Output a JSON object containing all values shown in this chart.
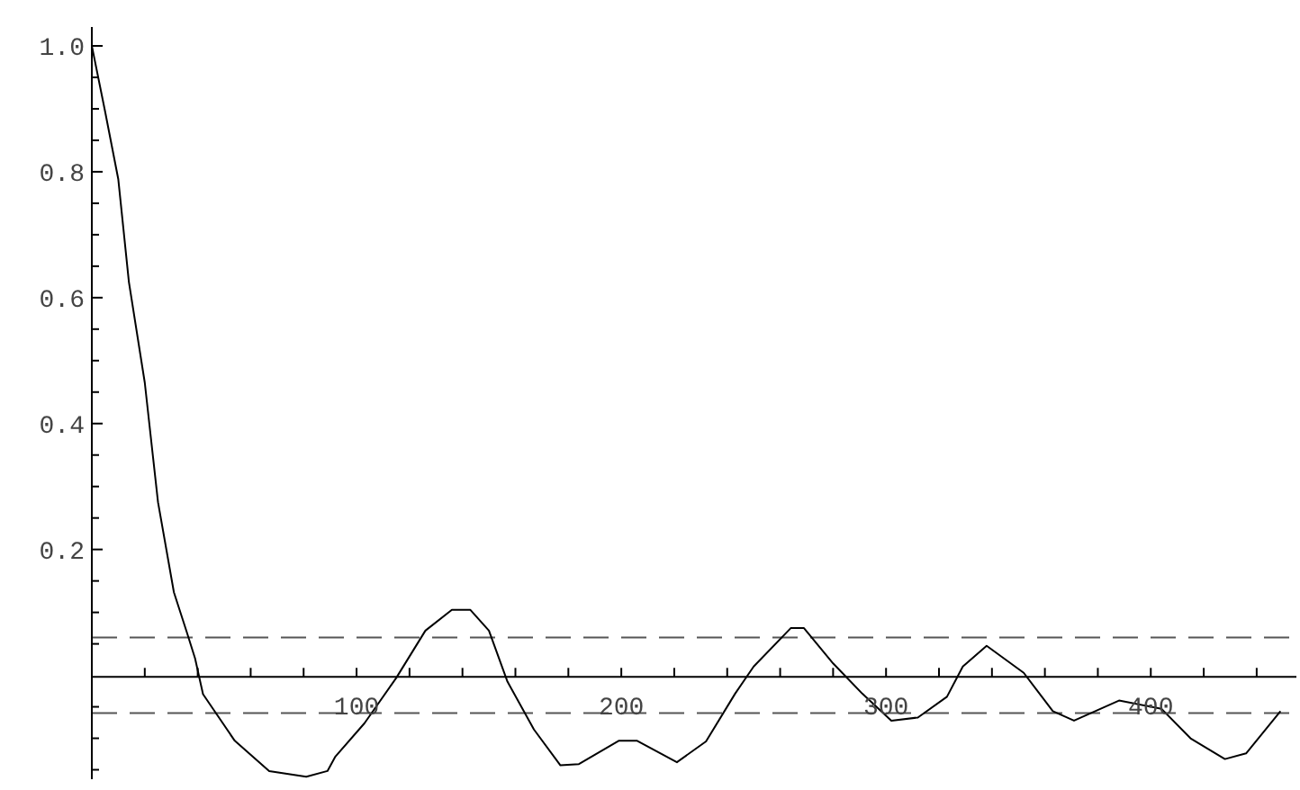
{
  "chart_data": {
    "type": "line",
    "color": "#000000",
    "marker": "none",
    "line_style": "solid",
    "grid": false,
    "x": [
      0,
      5,
      10,
      14,
      20,
      25,
      31,
      36,
      39,
      42,
      54,
      67,
      81,
      89,
      92,
      103,
      115,
      126,
      136,
      143,
      150,
      157,
      167,
      177,
      184,
      199,
      206,
      221,
      232,
      243,
      250,
      264,
      269,
      280,
      291,
      302,
      312,
      323,
      329,
      338,
      352,
      363,
      371,
      388,
      404,
      415,
      428,
      436,
      449
    ],
    "values": [
      1.0,
      0.896,
      0.788,
      0.625,
      0.465,
      0.275,
      0.132,
      0.067,
      0.027,
      -0.03,
      -0.104,
      -0.152,
      -0.161,
      -0.152,
      -0.129,
      -0.076,
      -0.004,
      0.071,
      0.104,
      0.104,
      0.071,
      -0.01,
      -0.086,
      -0.143,
      -0.141,
      -0.104,
      -0.104,
      -0.138,
      -0.105,
      -0.029,
      0.014,
      0.075,
      0.075,
      0.019,
      -0.029,
      -0.072,
      -0.067,
      -0.034,
      0.014,
      0.047,
      0.004,
      -0.057,
      -0.072,
      -0.04,
      -0.053,
      -0.1,
      -0.133,
      -0.124,
      -0.057
    ],
    "xlim": [
      0,
      455
    ],
    "ylim": [
      -0.165,
      1.03
    ],
    "xticks": [
      {
        "value": 20,
        "label": null
      },
      {
        "value": 40,
        "label": null
      },
      {
        "value": 60,
        "label": null
      },
      {
        "value": 80,
        "label": null
      },
      100,
      {
        "value": 120,
        "label": null
      },
      {
        "value": 140,
        "label": null
      },
      {
        "value": 160,
        "label": null
      },
      {
        "value": 180,
        "label": null
      },
      200,
      {
        "value": 220,
        "label": null
      },
      {
        "value": 240,
        "label": null
      },
      {
        "value": 260,
        "label": null
      },
      {
        "value": 280,
        "label": null
      },
      300,
      {
        "value": 320,
        "label": null
      },
      {
        "value": 340,
        "label": null
      },
      {
        "value": 360,
        "label": null
      },
      {
        "value": 380,
        "label": null
      },
      400,
      {
        "value": 420,
        "label": null
      },
      {
        "value": 440,
        "label": null
      }
    ],
    "yticks": [
      {
        "value": -0.15,
        "label": null
      },
      {
        "value": -0.1,
        "label": null
      },
      {
        "value": -0.05,
        "label": null
      },
      {
        "value": 0.05,
        "label": null
      },
      {
        "value": 0.1,
        "label": null
      },
      {
        "value": 0.15,
        "label": null
      },
      0.2,
      {
        "value": 0.25,
        "label": null
      },
      {
        "value": 0.3,
        "label": null
      },
      {
        "value": 0.35,
        "label": null
      },
      0.4,
      {
        "value": 0.45,
        "label": null
      },
      {
        "value": 0.5,
        "label": null
      },
      {
        "value": 0.55,
        "label": null
      },
      0.6,
      {
        "value": 0.65,
        "label": null
      },
      {
        "value": 0.7,
        "label": null
      },
      {
        "value": 0.75,
        "label": null
      },
      0.8,
      {
        "value": 0.85,
        "label": null
      },
      {
        "value": 0.9,
        "label": null
      },
      {
        "value": 0.95,
        "label": null
      },
      {
        "value": 1,
        "label": "1.0"
      }
    ],
    "ref_lines": [
      {
        "axis": "y",
        "value": 0.06,
        "color": "#555555",
        "line_style": "dashed"
      },
      {
        "axis": "y",
        "value": -0.06,
        "color": "#555555",
        "line_style": "dashed"
      }
    ]
  }
}
